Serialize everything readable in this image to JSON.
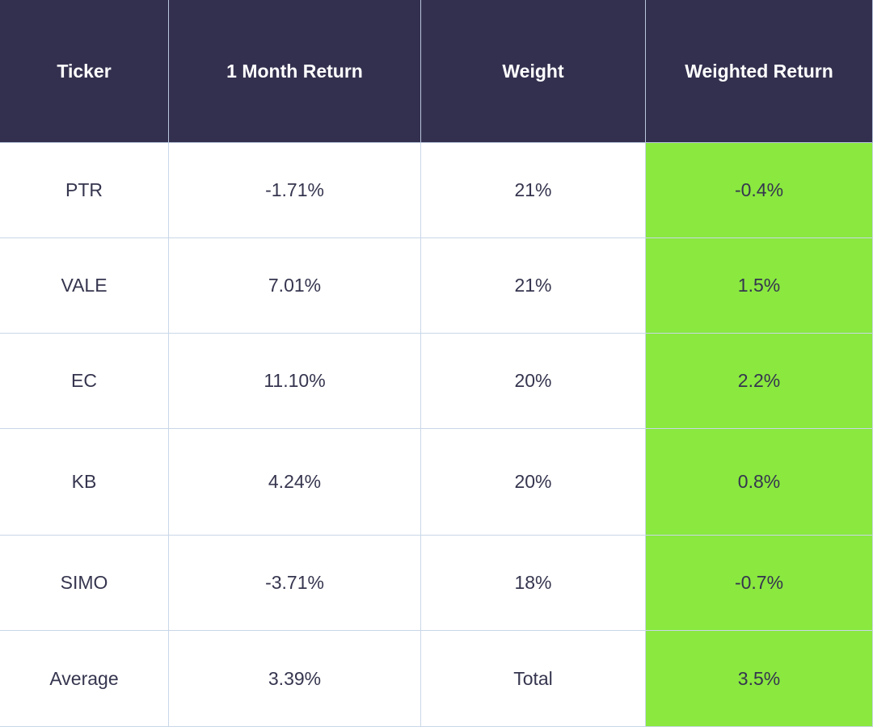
{
  "table": {
    "header": [
      "Ticker",
      "1 Month Return",
      "Weight",
      "Weighted Return"
    ],
    "rows": [
      [
        "PTR",
        "-1.71%",
        "21%",
        "-0.4%"
      ],
      [
        "VALE",
        "7.01%",
        "21%",
        "1.5%"
      ],
      [
        "EC",
        "11.10%",
        "20%",
        "2.2%"
      ],
      [
        "KB",
        "4.24%",
        "20%",
        "0.8%"
      ],
      [
        "SIMO",
        "-3.71%",
        "18%",
        "-0.7%"
      ],
      [
        "Average",
        "3.39%",
        "Total",
        "3.5%"
      ]
    ]
  }
}
